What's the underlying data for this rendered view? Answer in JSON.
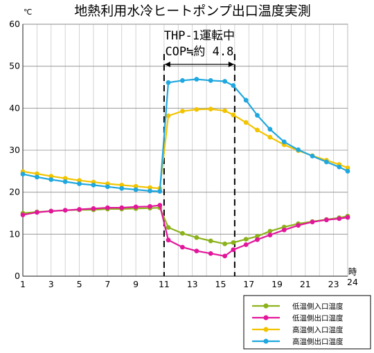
{
  "chart_data": {
    "type": "line",
    "title": "地熱利用水冷ヒートポンプ出口温度実測",
    "y_unit": "℃",
    "x_unit": "時",
    "xlim": [
      1,
      24
    ],
    "ylim": [
      0,
      60
    ],
    "y_ticks": [
      "0",
      "10",
      "20",
      "30",
      "40",
      "50",
      "60"
    ],
    "x_ticks": [
      "1",
      "3",
      "5",
      "7",
      "9",
      "11",
      "13",
      "15",
      "17",
      "19",
      "21",
      "23",
      "24"
    ],
    "grid": true,
    "legend_position": "bottom-right",
    "annotation": {
      "line1": "THP-1運転中",
      "line2": "COP≒約 4.8",
      "span": [
        11,
        16
      ]
    },
    "series": [
      {
        "name": "低温側入口温度",
        "color": "#8cb21b",
        "x": [
          1,
          2,
          3,
          4,
          5,
          6,
          7,
          8,
          9,
          10,
          10.7,
          11.3,
          12.3,
          13.3,
          14.3,
          15.3,
          15.9,
          16.8,
          17.6,
          18.5,
          19.5,
          20.5,
          21.5,
          22.5,
          23.4,
          24
        ],
        "values": [
          15.0,
          15.3,
          15.5,
          15.7,
          15.8,
          15.8,
          16.0,
          16.0,
          16.1,
          16.2,
          16.3,
          11.6,
          10.2,
          9.2,
          8.4,
          7.7,
          8.0,
          8.8,
          9.5,
          10.7,
          11.7,
          12.5,
          13.0,
          13.5,
          13.9,
          14.3
        ]
      },
      {
        "name": "低温側出口温度",
        "color": "#e2169a",
        "x": [
          1,
          2,
          3,
          4,
          5,
          6,
          7,
          8,
          9,
          10,
          10.7,
          11.3,
          12.3,
          13.3,
          14.3,
          15.3,
          15.9,
          16.8,
          17.6,
          18.5,
          19.5,
          20.5,
          21.5,
          22.5,
          23.4,
          24
        ],
        "values": [
          14.6,
          15.2,
          15.5,
          15.7,
          15.9,
          16.1,
          16.3,
          16.3,
          16.5,
          16.6,
          16.9,
          8.6,
          6.9,
          6.0,
          5.4,
          4.8,
          6.3,
          7.5,
          8.7,
          9.8,
          11.0,
          12.1,
          12.9,
          13.4,
          13.7,
          14.0
        ]
      },
      {
        "name": "高温側入口温度",
        "color": "#f2c400",
        "x": [
          1,
          2,
          3,
          4,
          5,
          6,
          7,
          8,
          9,
          10,
          10.7,
          11.3,
          12.3,
          13.3,
          14.3,
          15.3,
          15.9,
          16.8,
          17.6,
          18.5,
          19.5,
          20.5,
          21.5,
          22.5,
          23.4,
          24
        ],
        "values": [
          24.9,
          24.4,
          23.8,
          23.3,
          22.8,
          22.4,
          22.0,
          21.7,
          21.4,
          21.1,
          20.9,
          38.2,
          39.3,
          39.7,
          39.8,
          39.4,
          38.4,
          36.6,
          34.8,
          33.1,
          31.3,
          29.9,
          28.7,
          27.6,
          26.6,
          25.8
        ]
      },
      {
        "name": "高温側出口温度",
        "color": "#1fa7df",
        "x": [
          1,
          2,
          3,
          4,
          5,
          6,
          7,
          8,
          9,
          10,
          10.7,
          11.3,
          12.3,
          13.3,
          14.3,
          15.3,
          15.9,
          16.8,
          17.6,
          18.5,
          19.5,
          20.5,
          21.5,
          22.5,
          23.4,
          24
        ],
        "values": [
          24.3,
          23.6,
          23.0,
          22.5,
          22.0,
          21.7,
          21.3,
          20.9,
          20.6,
          20.3,
          20.2,
          46.1,
          46.6,
          46.9,
          46.6,
          46.4,
          45.4,
          41.9,
          38.3,
          35.0,
          32.0,
          30.1,
          28.6,
          27.2,
          26.0,
          25.0
        ]
      }
    ]
  }
}
